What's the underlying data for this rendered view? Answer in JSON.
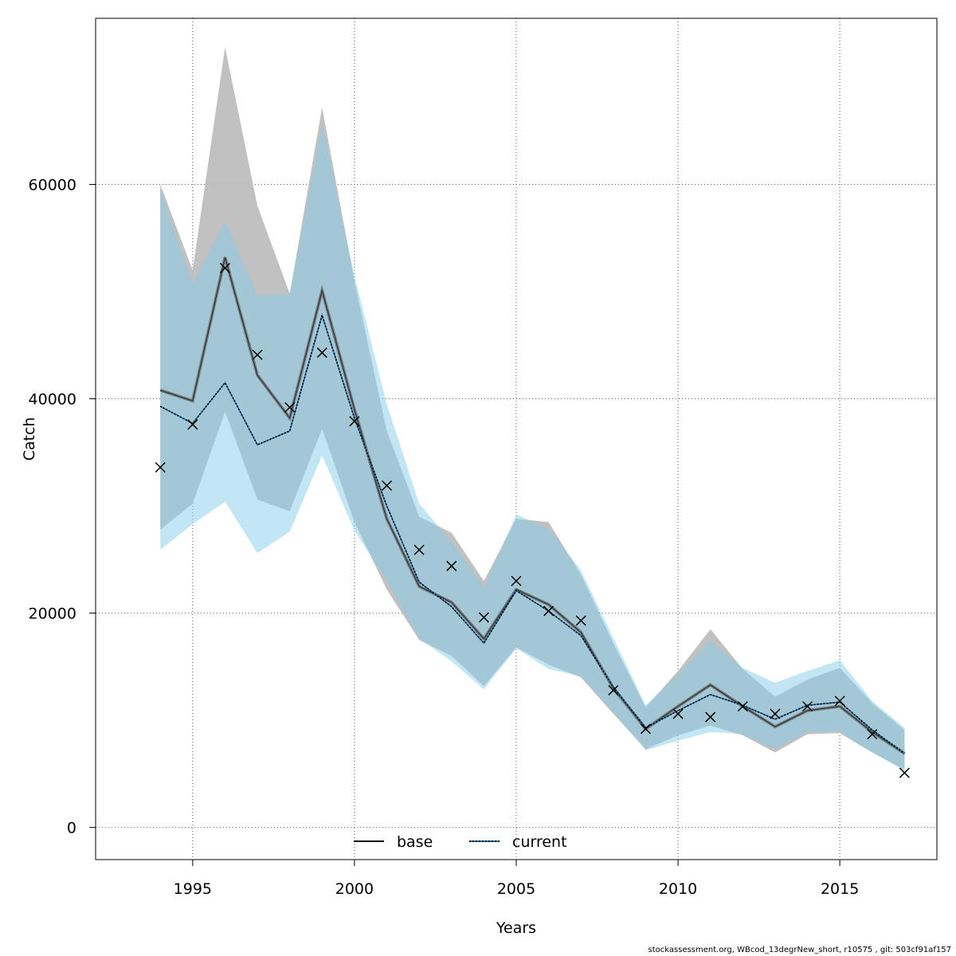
{
  "chart_data": {
    "type": "line",
    "xlabel": "Years",
    "ylabel": "Catch",
    "xlim": [
      1992,
      2018
    ],
    "ylim": [
      -3000,
      75500
    ],
    "xticks": [
      1995,
      2000,
      2005,
      2010,
      2015
    ],
    "yticks": [
      0,
      20000,
      40000,
      60000
    ],
    "grid": true,
    "legend_placement": "bottom",
    "colors": {
      "base_band": "#bebebe",
      "current_band": "#87ceeb",
      "base_line": "#000000",
      "current_line": "#000000",
      "current_line_inner": "#1f78b4",
      "observed": "#000000"
    },
    "x": [
      1994,
      1995,
      1996,
      1997,
      1998,
      1999,
      2000,
      2001,
      2002,
      2003,
      2004,
      2005,
      2006,
      2007,
      2008,
      2009,
      2010,
      2011,
      2012,
      2013,
      2014,
      2015,
      2016,
      2017
    ],
    "series": [
      {
        "name": "base",
        "style": "solid",
        "values": [
          40800,
          39800,
          53200,
          42200,
          38200,
          50100,
          39000,
          28800,
          22500,
          21000,
          17600,
          22200,
          20800,
          18200,
          13000,
          9200,
          11300,
          13300,
          11300,
          9400,
          10900,
          11300,
          8900,
          6900
        ],
        "lower": [
          27800,
          30200,
          38800,
          30600,
          29500,
          37200,
          28500,
          22200,
          17500,
          16000,
          13200,
          16800,
          15200,
          14000,
          10600,
          7300,
          8600,
          9500,
          8600,
          7000,
          8700,
          8800,
          7000,
          5400
        ],
        "upper": [
          60000,
          52000,
          72800,
          58000,
          49800,
          67200,
          51000,
          37000,
          29000,
          27500,
          23000,
          28800,
          28500,
          23600,
          17200,
          11200,
          14600,
          18500,
          14800,
          12200,
          13800,
          14900,
          11600,
          9100
        ]
      },
      {
        "name": "current",
        "style": "dotted",
        "values": [
          39300,
          37700,
          41500,
          35700,
          37000,
          47800,
          38200,
          30000,
          22900,
          20600,
          17200,
          22100,
          20200,
          17900,
          13100,
          9300,
          10900,
          12400,
          11400,
          10100,
          11400,
          11700,
          9100,
          6900
        ],
        "lower": [
          25900,
          28300,
          30400,
          25600,
          27600,
          34700,
          27700,
          23000,
          17600,
          15500,
          12900,
          16700,
          14800,
          14100,
          10800,
          7200,
          8100,
          8900,
          8700,
          7300,
          8900,
          8900,
          7000,
          5300
        ],
        "upper": [
          59500,
          50700,
          56600,
          49700,
          49800,
          65600,
          51500,
          39500,
          30200,
          26700,
          22400,
          29200,
          27900,
          24000,
          17700,
          11400,
          14300,
          17400,
          14900,
          13500,
          14600,
          15600,
          11800,
          9300
        ]
      }
    ],
    "observed": {
      "x": [
        1994,
        1995,
        1996,
        1997,
        1998,
        1999,
        2000,
        2001,
        2002,
        2003,
        2004,
        2005,
        2006,
        2007,
        2008,
        2009,
        2010,
        2011,
        2012,
        2013,
        2014,
        2015,
        2016,
        2017
      ],
      "values": [
        33600,
        37600,
        52200,
        44100,
        39200,
        44300,
        37900,
        31900,
        25900,
        24400,
        19600,
        23000,
        20200,
        19300,
        12800,
        9200,
        10600,
        10300,
        11300,
        10600,
        11300,
        11800,
        8700,
        5100
      ]
    },
    "legend": [
      "base",
      "current"
    ]
  },
  "footer": "stockassessment.org, WBcod_13degrNew_short, r10575 , git: 503cf91af157"
}
